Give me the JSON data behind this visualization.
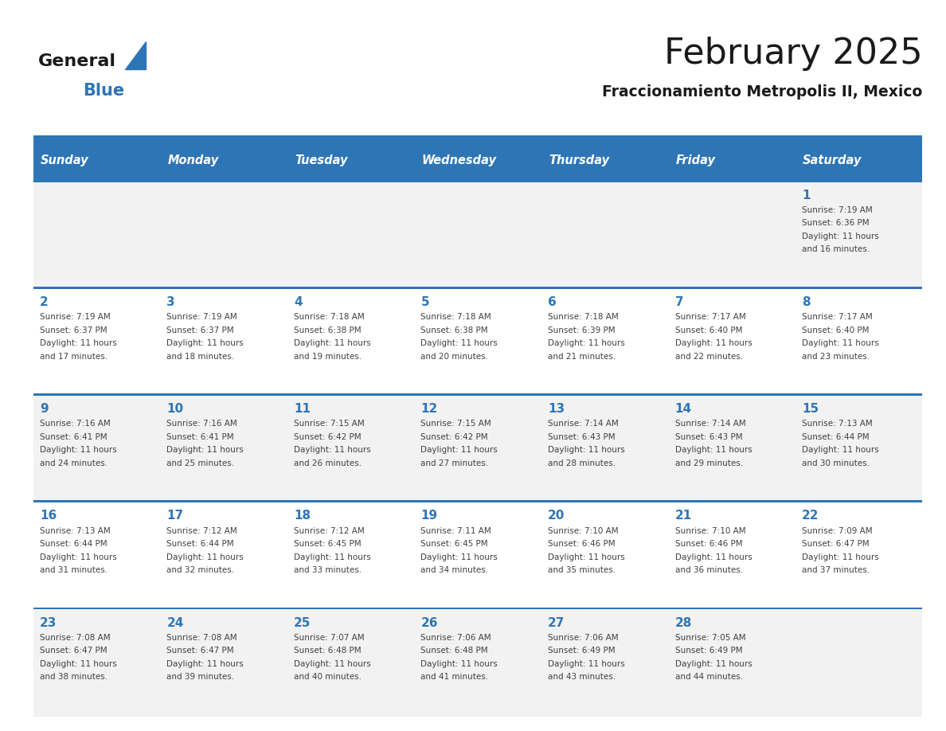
{
  "title": "February 2025",
  "subtitle": "Fraccionamiento Metropolis II, Mexico",
  "header_color": "#2E75B6",
  "header_text_color": "#FFFFFF",
  "day_names": [
    "Sunday",
    "Monday",
    "Tuesday",
    "Wednesday",
    "Thursday",
    "Friday",
    "Saturday"
  ],
  "bg_color": "#FFFFFF",
  "cell_bg_even": "#F2F2F2",
  "cell_bg_odd": "#FFFFFF",
  "day_number_color": "#2E75B6",
  "text_color": "#404040",
  "line_color": "#2E75B6",
  "logo_general_color": "#1a1a1a",
  "logo_blue_color": "#2E75B6",
  "days": [
    {
      "day": 1,
      "col": 6,
      "row": 0,
      "sunrise": "7:19 AM",
      "sunset": "6:36 PM",
      "daylight_line1": "Daylight: 11 hours",
      "daylight_line2": "and 16 minutes."
    },
    {
      "day": 2,
      "col": 0,
      "row": 1,
      "sunrise": "7:19 AM",
      "sunset": "6:37 PM",
      "daylight_line1": "Daylight: 11 hours",
      "daylight_line2": "and 17 minutes."
    },
    {
      "day": 3,
      "col": 1,
      "row": 1,
      "sunrise": "7:19 AM",
      "sunset": "6:37 PM",
      "daylight_line1": "Daylight: 11 hours",
      "daylight_line2": "and 18 minutes."
    },
    {
      "day": 4,
      "col": 2,
      "row": 1,
      "sunrise": "7:18 AM",
      "sunset": "6:38 PM",
      "daylight_line1": "Daylight: 11 hours",
      "daylight_line2": "and 19 minutes."
    },
    {
      "day": 5,
      "col": 3,
      "row": 1,
      "sunrise": "7:18 AM",
      "sunset": "6:38 PM",
      "daylight_line1": "Daylight: 11 hours",
      "daylight_line2": "and 20 minutes."
    },
    {
      "day": 6,
      "col": 4,
      "row": 1,
      "sunrise": "7:18 AM",
      "sunset": "6:39 PM",
      "daylight_line1": "Daylight: 11 hours",
      "daylight_line2": "and 21 minutes."
    },
    {
      "day": 7,
      "col": 5,
      "row": 1,
      "sunrise": "7:17 AM",
      "sunset": "6:40 PM",
      "daylight_line1": "Daylight: 11 hours",
      "daylight_line2": "and 22 minutes."
    },
    {
      "day": 8,
      "col": 6,
      "row": 1,
      "sunrise": "7:17 AM",
      "sunset": "6:40 PM",
      "daylight_line1": "Daylight: 11 hours",
      "daylight_line2": "and 23 minutes."
    },
    {
      "day": 9,
      "col": 0,
      "row": 2,
      "sunrise": "7:16 AM",
      "sunset": "6:41 PM",
      "daylight_line1": "Daylight: 11 hours",
      "daylight_line2": "and 24 minutes."
    },
    {
      "day": 10,
      "col": 1,
      "row": 2,
      "sunrise": "7:16 AM",
      "sunset": "6:41 PM",
      "daylight_line1": "Daylight: 11 hours",
      "daylight_line2": "and 25 minutes."
    },
    {
      "day": 11,
      "col": 2,
      "row": 2,
      "sunrise": "7:15 AM",
      "sunset": "6:42 PM",
      "daylight_line1": "Daylight: 11 hours",
      "daylight_line2": "and 26 minutes."
    },
    {
      "day": 12,
      "col": 3,
      "row": 2,
      "sunrise": "7:15 AM",
      "sunset": "6:42 PM",
      "daylight_line1": "Daylight: 11 hours",
      "daylight_line2": "and 27 minutes."
    },
    {
      "day": 13,
      "col": 4,
      "row": 2,
      "sunrise": "7:14 AM",
      "sunset": "6:43 PM",
      "daylight_line1": "Daylight: 11 hours",
      "daylight_line2": "and 28 minutes."
    },
    {
      "day": 14,
      "col": 5,
      "row": 2,
      "sunrise": "7:14 AM",
      "sunset": "6:43 PM",
      "daylight_line1": "Daylight: 11 hours",
      "daylight_line2": "and 29 minutes."
    },
    {
      "day": 15,
      "col": 6,
      "row": 2,
      "sunrise": "7:13 AM",
      "sunset": "6:44 PM",
      "daylight_line1": "Daylight: 11 hours",
      "daylight_line2": "and 30 minutes."
    },
    {
      "day": 16,
      "col": 0,
      "row": 3,
      "sunrise": "7:13 AM",
      "sunset": "6:44 PM",
      "daylight_line1": "Daylight: 11 hours",
      "daylight_line2": "and 31 minutes."
    },
    {
      "day": 17,
      "col": 1,
      "row": 3,
      "sunrise": "7:12 AM",
      "sunset": "6:44 PM",
      "daylight_line1": "Daylight: 11 hours",
      "daylight_line2": "and 32 minutes."
    },
    {
      "day": 18,
      "col": 2,
      "row": 3,
      "sunrise": "7:12 AM",
      "sunset": "6:45 PM",
      "daylight_line1": "Daylight: 11 hours",
      "daylight_line2": "and 33 minutes."
    },
    {
      "day": 19,
      "col": 3,
      "row": 3,
      "sunrise": "7:11 AM",
      "sunset": "6:45 PM",
      "daylight_line1": "Daylight: 11 hours",
      "daylight_line2": "and 34 minutes."
    },
    {
      "day": 20,
      "col": 4,
      "row": 3,
      "sunrise": "7:10 AM",
      "sunset": "6:46 PM",
      "daylight_line1": "Daylight: 11 hours",
      "daylight_line2": "and 35 minutes."
    },
    {
      "day": 21,
      "col": 5,
      "row": 3,
      "sunrise": "7:10 AM",
      "sunset": "6:46 PM",
      "daylight_line1": "Daylight: 11 hours",
      "daylight_line2": "and 36 minutes."
    },
    {
      "day": 22,
      "col": 6,
      "row": 3,
      "sunrise": "7:09 AM",
      "sunset": "6:47 PM",
      "daylight_line1": "Daylight: 11 hours",
      "daylight_line2": "and 37 minutes."
    },
    {
      "day": 23,
      "col": 0,
      "row": 4,
      "sunrise": "7:08 AM",
      "sunset": "6:47 PM",
      "daylight_line1": "Daylight: 11 hours",
      "daylight_line2": "and 38 minutes."
    },
    {
      "day": 24,
      "col": 1,
      "row": 4,
      "sunrise": "7:08 AM",
      "sunset": "6:47 PM",
      "daylight_line1": "Daylight: 11 hours",
      "daylight_line2": "and 39 minutes."
    },
    {
      "day": 25,
      "col": 2,
      "row": 4,
      "sunrise": "7:07 AM",
      "sunset": "6:48 PM",
      "daylight_line1": "Daylight: 11 hours",
      "daylight_line2": "and 40 minutes."
    },
    {
      "day": 26,
      "col": 3,
      "row": 4,
      "sunrise": "7:06 AM",
      "sunset": "6:48 PM",
      "daylight_line1": "Daylight: 11 hours",
      "daylight_line2": "and 41 minutes."
    },
    {
      "day": 27,
      "col": 4,
      "row": 4,
      "sunrise": "7:06 AM",
      "sunset": "6:49 PM",
      "daylight_line1": "Daylight: 11 hours",
      "daylight_line2": "and 43 minutes."
    },
    {
      "day": 28,
      "col": 5,
      "row": 4,
      "sunrise": "7:05 AM",
      "sunset": "6:49 PM",
      "daylight_line1": "Daylight: 11 hours",
      "daylight_line2": "and 44 minutes."
    }
  ]
}
